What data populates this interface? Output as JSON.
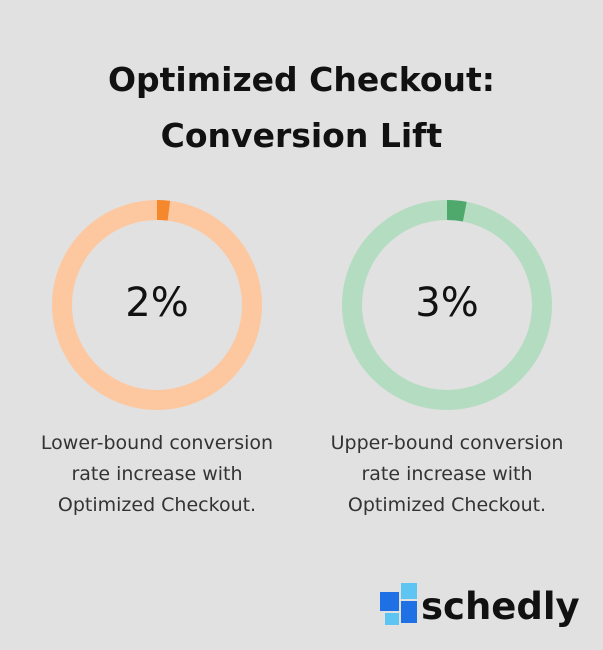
{
  "title": "Optimized Checkout: Conversion Lift",
  "chart_data": [
    {
      "type": "donut",
      "values": [
        2
      ],
      "value_labels": [
        "2%"
      ],
      "caption": "Lower-bound conversion rate increase with Optimized Checkout.",
      "color": "#f5872c",
      "track_color": "#fdc8a0"
    },
    {
      "type": "donut",
      "values": [
        3
      ],
      "value_labels": [
        "3%"
      ],
      "caption": "Upper-bound conversion rate increase with Optimized Checkout.",
      "color": "#4fa86c",
      "track_color": "#b4dcc1"
    }
  ],
  "brand": "schedly"
}
